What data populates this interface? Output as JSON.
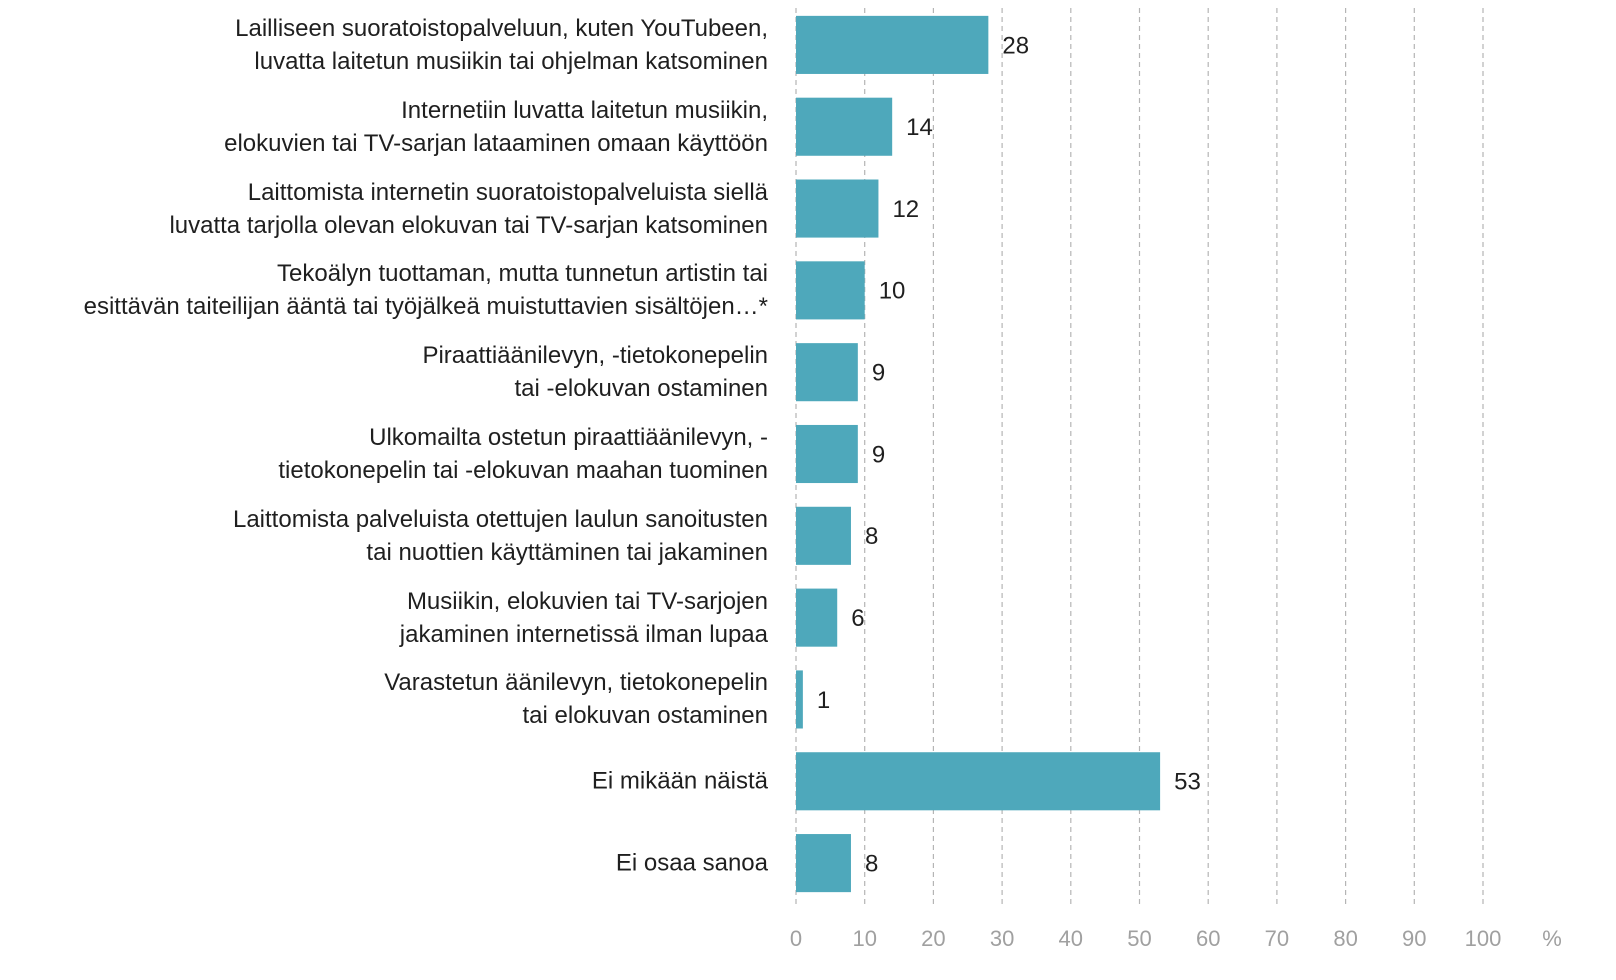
{
  "chart_data": {
    "type": "bar",
    "orientation": "horizontal",
    "categories": [
      "Lailliseen suoratoistopalveluun, kuten YouTubeen,\nluvatta laitetun musiikin tai ohjelman katsominen",
      "Internetiin luvatta laitetun musiikin,\nelokuvien tai TV-sarjan lataaminen omaan käyttöön",
      "Laittomista internetin suoratoistopalveluista siellä\nluvatta tarjolla olevan elokuvan tai TV-sarjan katsominen",
      "Tekoälyn tuottaman, mutta tunnetun artistin tai\nesittävän taiteilijan ääntä tai työjälkeä muistuttavien sisältöjen…*",
      "Piraattiäänilevyn, -tietokonepelin\ntai -elokuvan ostaminen",
      "Ulkomailta ostetun piraattiäänilevyn, -\ntietokonepelin tai -elokuvan maahan tuominen",
      "Laittomista palveluista otettujen laulun sanoitusten\ntai nuottien käyttäminen tai jakaminen",
      "Musiikin, elokuvien tai TV-sarjojen\njakaminen internetissä ilman lupaa",
      "Varastetun äänilevyn, tietokonepelin\ntai elokuvan ostaminen",
      "Ei mikään näistä",
      "Ei osaa sanoa"
    ],
    "values": [
      28,
      14,
      12,
      10,
      9,
      9,
      8,
      6,
      1,
      53,
      8
    ],
    "color": "#4ea8bb",
    "x_label": "%",
    "xlim": [
      0,
      100
    ],
    "xticks": [
      0,
      10,
      20,
      30,
      40,
      50,
      60,
      70,
      80,
      90,
      100
    ],
    "grid": true
  }
}
